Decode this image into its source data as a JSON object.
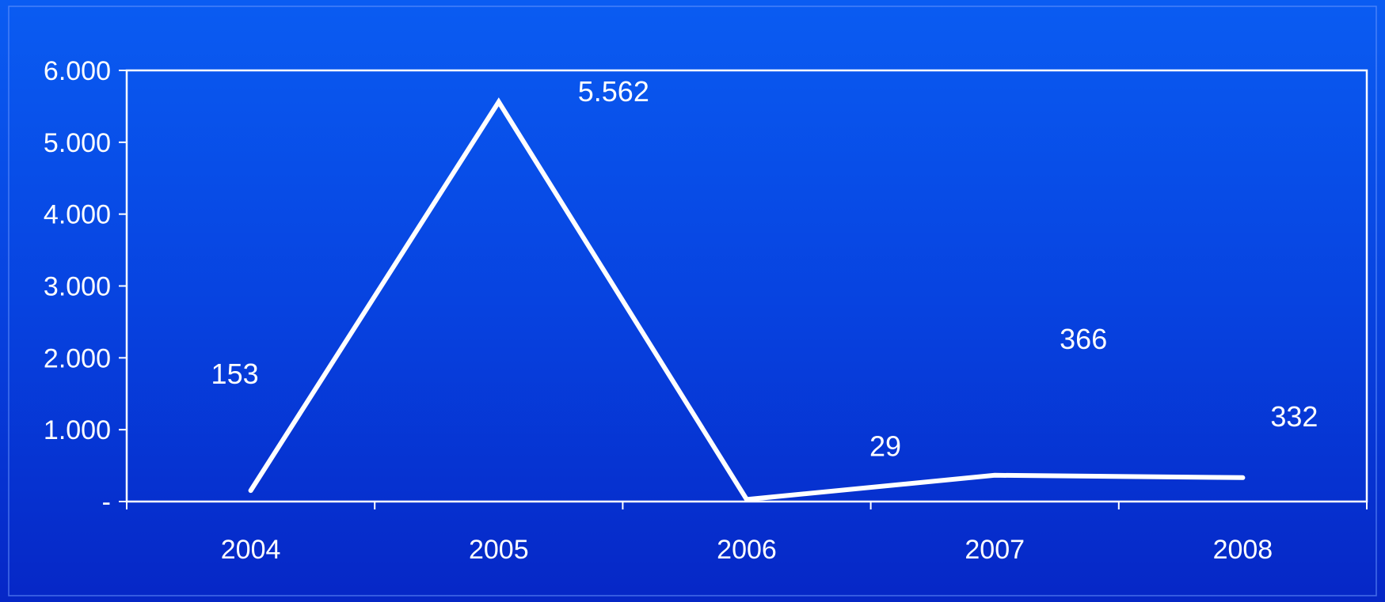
{
  "chart_data": {
    "type": "line",
    "categories": [
      "2004",
      "2005",
      "2006",
      "2007",
      "2008"
    ],
    "series": [
      {
        "values": [
          153,
          5562,
          29,
          366,
          332
        ],
        "labels": [
          "153",
          "5.562",
          "29",
          "366",
          "332"
        ]
      }
    ],
    "ylim": [
      0,
      6000
    ],
    "yticks": [
      0,
      1000,
      2000,
      3000,
      4000,
      5000,
      6000
    ],
    "ytick_labels": [
      "-",
      "1.000",
      "2.000",
      "3.000",
      "4.000",
      "5.000",
      "6.000"
    ],
    "grid": false,
    "legend": "none",
    "title": "",
    "xlabel": "",
    "ylabel": "",
    "colors": {
      "background_top": "#0a5cf2",
      "background_bottom": "#0627c6",
      "line": "#ffffff",
      "axis": "#ffffff",
      "text": "#ffffff"
    }
  }
}
